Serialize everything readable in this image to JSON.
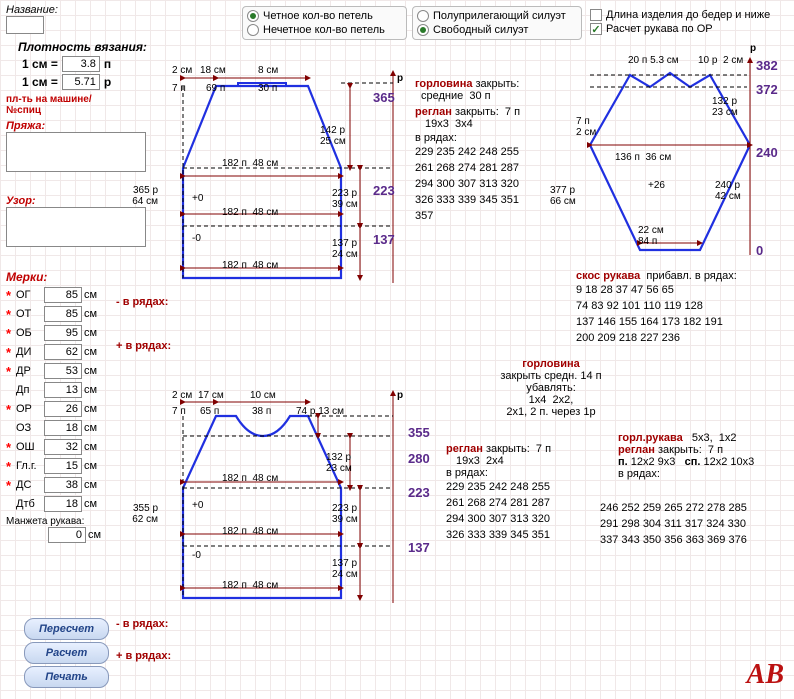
{
  "header": {
    "name_label": "Название:",
    "density_label": "Плотность вязания:",
    "cm_eq": "1 см =",
    "p_unit": "п",
    "r_unit": "р",
    "density_p": "3.8",
    "density_r": "5.71",
    "machine_label": "пл-ть на машине/",
    "needles_label": "№спиц",
    "yarn_label": "Пряжа:",
    "pattern_label": "Узор:"
  },
  "radio1": {
    "opt1": "Четное кол-во петель",
    "opt2": "Нечетное кол-во петель",
    "sel": 0
  },
  "radio2": {
    "opt1": "Полуприлегающий силуэт",
    "opt2": "Свободный силуэт",
    "sel": 1
  },
  "checks": {
    "c1": "Длина изделия до бедер и ниже",
    "c1v": false,
    "c2": "Расчет рукава по ОР",
    "c2v": true
  },
  "measures": {
    "title": "Мерки:",
    "rows": [
      {
        "k": "ОГ",
        "v": "85",
        "star": true
      },
      {
        "k": "ОТ",
        "v": "85",
        "star": true
      },
      {
        "k": "ОБ",
        "v": "95",
        "star": true
      },
      {
        "k": "ДИ",
        "v": "62",
        "star": true
      },
      {
        "k": "ДР",
        "v": "53",
        "star": true
      },
      {
        "k": "Дп",
        "v": "13",
        "star": false
      },
      {
        "k": "ОР",
        "v": "26",
        "star": true
      },
      {
        "k": "ОЗ",
        "v": "18",
        "star": false
      },
      {
        "k": "ОШ",
        "v": "32",
        "star": true
      },
      {
        "k": "Гл.г.",
        "v": "15",
        "star": true
      },
      {
        "k": "ДС",
        "v": "38",
        "star": true
      },
      {
        "k": "Дтб",
        "v": "18",
        "star": false
      }
    ],
    "cuff_label": "Манжета рукава:",
    "cuff_val": "0",
    "cm": "см"
  },
  "side": {
    "rows_minus": "- в рядах:",
    "rows_plus": "+ в рядах:",
    "val_365": "365",
    "val_64": "64",
    "val_355": "355",
    "val_62": "62"
  },
  "buttons": {
    "b1": "Пересчет",
    "b2": "Расчет",
    "b3": "Печать"
  },
  "back": {
    "dim_2cm": "2",
    "dim_18cm": "18",
    "dim_8cm": "8",
    "dim_7p": "7",
    "dim_69p": "69",
    "dim_30p": "30",
    "dim_142r": "142",
    "dim_25cm": "25",
    "dim_182p": "182",
    "dim_48cm": "48",
    "plus0": "+0",
    "minus0": "-0",
    "dim_223r": "223",
    "dim_39cm": "39",
    "dim_137r": "137",
    "dim_24cm": "24",
    "lvl_365": "365",
    "lvl_223": "223",
    "lvl_137": "137",
    "cm": "см",
    "p": "п",
    "r": "р"
  },
  "front": {
    "dim_2cm": "2",
    "dim_17cm": "17",
    "dim_10cm": "10",
    "dim_7p": "7",
    "dim_65p": "65",
    "dim_38p": "38",
    "dim_74r": "74",
    "dim_13cm": "13",
    "dim_132r": "132",
    "dim_23cm": "23",
    "dim_182p": "182",
    "dim_48cm": "48",
    "plus0": "+0",
    "minus0": "-0",
    "dim_223r": "223",
    "dim_39cm": "39",
    "dim_137r": "137",
    "dim_24cm": "24",
    "lvl_355": "355",
    "lvl_280": "280",
    "lvl_223": "223",
    "lvl_137": "137"
  },
  "sleeve": {
    "dim_20p": "20",
    "dim_53cm": "5.3",
    "dim_10r": "10",
    "dim_2cm": "2",
    "dim_132r": "132",
    "dim_23cm": "23",
    "dim_7p": "7",
    "dim_2cmL": "2",
    "dim_136p": "136",
    "dim_36cm": "36",
    "plus26": "+26",
    "dim_22cm": "22",
    "dim_84p": "84",
    "dim_240r": "240",
    "dim_42cm": "42",
    "dim_377r": "377",
    "dim_66cm": "66",
    "lvl_382": "382",
    "lvl_372": "372",
    "lvl_240": "240",
    "lvl_0": "0"
  },
  "text_back": {
    "gorlovina": "горловина",
    "zakryt": "закрыть:",
    "srednie": "средние",
    "val30": "30",
    "reglan": "реглан",
    "val7": "7",
    "r19x3": "19x3",
    "r3x4": "3x4",
    "v_ryadah": "в рядах:",
    "rows": "229 235 242 248 255\n261 268 274 281 287\n294 300 307 313 320\n326 333 339 345 351\n357"
  },
  "text_front": {
    "gorlovina": "горловина",
    "zakryt_sredn": "закрыть средн.",
    "val14": "14",
    "ubavlyat": "убавлять:",
    "r1x4": "1x4",
    "r2x2": "2x2,",
    "r2x1": "2x1, 2 п. через 1р",
    "reglan": "реглан",
    "zakryt": "закрыть:",
    "val7": "7",
    "r19x3": "19x3",
    "r2x4": "2x4",
    "v_ryadah": "в рядах:",
    "rows": "229 235 242 248 255\n261 268 274 281 287\n294 300 307 313 320\n326 333 339 345 351"
  },
  "text_sleeve": {
    "skos": "скос рукава",
    "pribavl": "прибавл. в рядах:",
    "rows1": "  9   18   28   37   47   56   65\n 74   83   92  101 110 119 128\n137 146 155 164 173 182 191\n200 209 218 227 236",
    "gorl": "горл.рукава",
    "r5x3": "5x3,",
    "r1x2": "1x2",
    "reglan": "реглан",
    "zakryt": "закрыть:",
    "val7": "7",
    "p_col": "п.",
    "sp_col": "сп.",
    "p_r": "12x2 9x3",
    "sp_r": "12x2 10x3",
    "v_ryadah": "в рядах:",
    "rows2": "246 252 259 265 272 278 285\n291 298 304 311 317 324 330\n337 343 350 356 363 369 376"
  },
  "axis_p": "p",
  "colors": {
    "line": "#2030e0",
    "arrow": "#800000",
    "text_darkred": "#a00000",
    "text_purple": "#5a2a8a"
  }
}
